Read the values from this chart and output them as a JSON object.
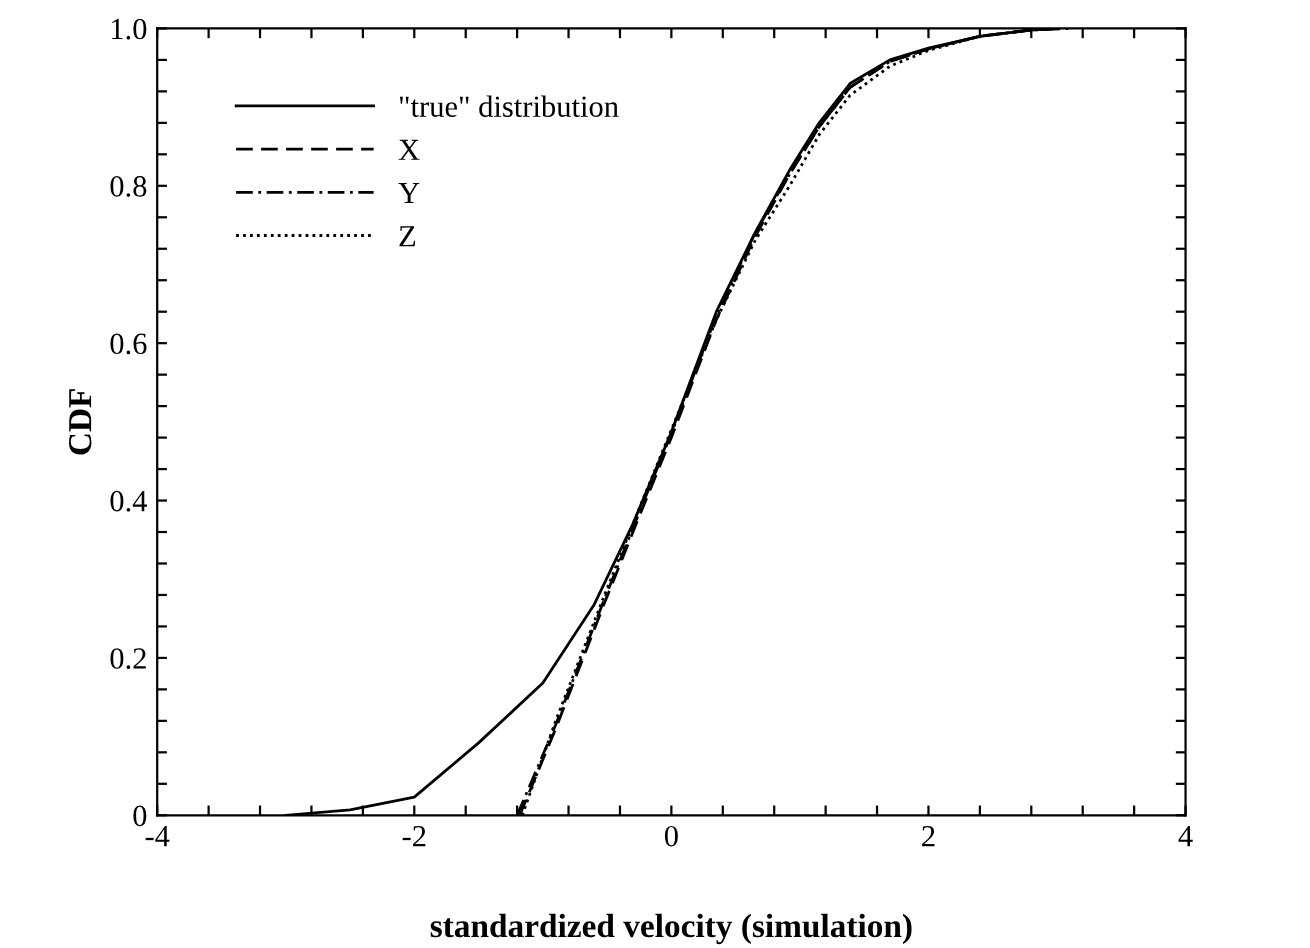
{
  "chart_data": {
    "type": "line",
    "xlabel": "standardized velocity (simulation)",
    "ylabel": "CDF",
    "xlim": [
      -4,
      4
    ],
    "ylim": [
      0,
      1.0
    ],
    "xticks": [
      -4,
      {
        "value": -3.6,
        "label": null
      },
      {
        "value": -3.2,
        "label": null
      },
      {
        "value": -2.8,
        "label": null
      },
      {
        "value": -2.4,
        "label": null
      },
      -2,
      {
        "value": -1.6,
        "label": null
      },
      {
        "value": -1.2,
        "label": null
      },
      {
        "value": -0.8,
        "label": null
      },
      {
        "value": -0.4,
        "label": null
      },
      0,
      {
        "value": 0.4,
        "label": null
      },
      {
        "value": 0.8,
        "label": null
      },
      {
        "value": 1.2,
        "label": null
      },
      {
        "value": 1.6,
        "label": null
      },
      2,
      {
        "value": 2.4,
        "label": null
      },
      {
        "value": 2.8,
        "label": null
      },
      {
        "value": 3.2,
        "label": null
      },
      {
        "value": 3.6,
        "label": null
      },
      4
    ],
    "yticks": [
      0,
      {
        "value": 0.04,
        "label": null
      },
      {
        "value": 0.08,
        "label": null
      },
      {
        "value": 0.12,
        "label": null
      },
      {
        "value": 0.16,
        "label": null
      },
      0.2,
      {
        "value": 0.24,
        "label": null
      },
      {
        "value": 0.28,
        "label": null
      },
      {
        "value": 0.32,
        "label": null
      },
      {
        "value": 0.36,
        "label": null
      },
      0.4,
      {
        "value": 0.44,
        "label": null
      },
      {
        "value": 0.48,
        "label": null
      },
      {
        "value": 0.52,
        "label": null
      },
      {
        "value": 0.56,
        "label": null
      },
      0.6,
      {
        "value": 0.64,
        "label": null
      },
      {
        "value": 0.68,
        "label": null
      },
      {
        "value": 0.72,
        "label": null
      },
      {
        "value": 0.76,
        "label": null
      },
      0.8,
      {
        "value": 0.84,
        "label": null
      },
      {
        "value": 0.88,
        "label": null
      },
      {
        "value": 0.92,
        "label": null
      },
      {
        "value": 0.96,
        "label": null
      },
      {
        "value": 1.0,
        "label": "1.0"
      }
    ],
    "grid": false,
    "legend": "top left",
    "marker": "none",
    "series": [
      {
        "name": "\"true\" distribution",
        "color": "#000000",
        "line_style": "solid",
        "x": [
          -3.0,
          -2.5,
          -2.0,
          -1.5,
          -1.0,
          -0.6,
          -0.3,
          0.0,
          0.35,
          0.65,
          0.92,
          1.15,
          1.39,
          1.7,
          2.0,
          2.4,
          2.8,
          3.0
        ],
        "values": [
          0.0,
          0.007,
          0.023,
          0.092,
          0.168,
          0.268,
          0.37,
          0.487,
          0.64,
          0.74,
          0.82,
          0.88,
          0.93,
          0.96,
          0.975,
          0.99,
          0.998,
          1.0
        ]
      },
      {
        "name": "X",
        "color": "#000000",
        "line_style": "dashed",
        "x": [
          -1.18,
          -0.9,
          -0.52,
          -0.25,
          0.0,
          0.35,
          0.65,
          0.92,
          1.15,
          1.39,
          1.7,
          2.0,
          2.4,
          2.8,
          3.0
        ],
        "values": [
          0.0,
          0.11,
          0.27,
          0.38,
          0.48,
          0.63,
          0.735,
          0.815,
          0.875,
          0.925,
          0.958,
          0.974,
          0.99,
          0.998,
          1.0
        ]
      },
      {
        "name": "Y",
        "color": "#000000",
        "line_style": "dashdot",
        "x": [
          -1.2,
          -0.9,
          -0.52,
          -0.25,
          0.0,
          0.35,
          0.65,
          0.92,
          1.15,
          1.39,
          1.7,
          2.0,
          2.4,
          2.8,
          3.1
        ],
        "values": [
          0.0,
          0.115,
          0.275,
          0.385,
          0.485,
          0.635,
          0.74,
          0.815,
          0.875,
          0.925,
          0.958,
          0.974,
          0.99,
          0.998,
          1.0
        ]
      },
      {
        "name": "Z",
        "color": "#000000",
        "line_style": "dotted",
        "x": [
          -1.16,
          -0.9,
          -0.52,
          -0.25,
          0.0,
          0.35,
          0.65,
          0.92,
          1.15,
          1.39,
          1.7,
          2.0,
          2.4,
          2.8,
          2.9
        ],
        "values": [
          0.0,
          0.12,
          0.28,
          0.39,
          0.49,
          0.63,
          0.73,
          0.8,
          0.865,
          0.915,
          0.952,
          0.972,
          0.99,
          0.998,
          1.0
        ]
      }
    ]
  }
}
